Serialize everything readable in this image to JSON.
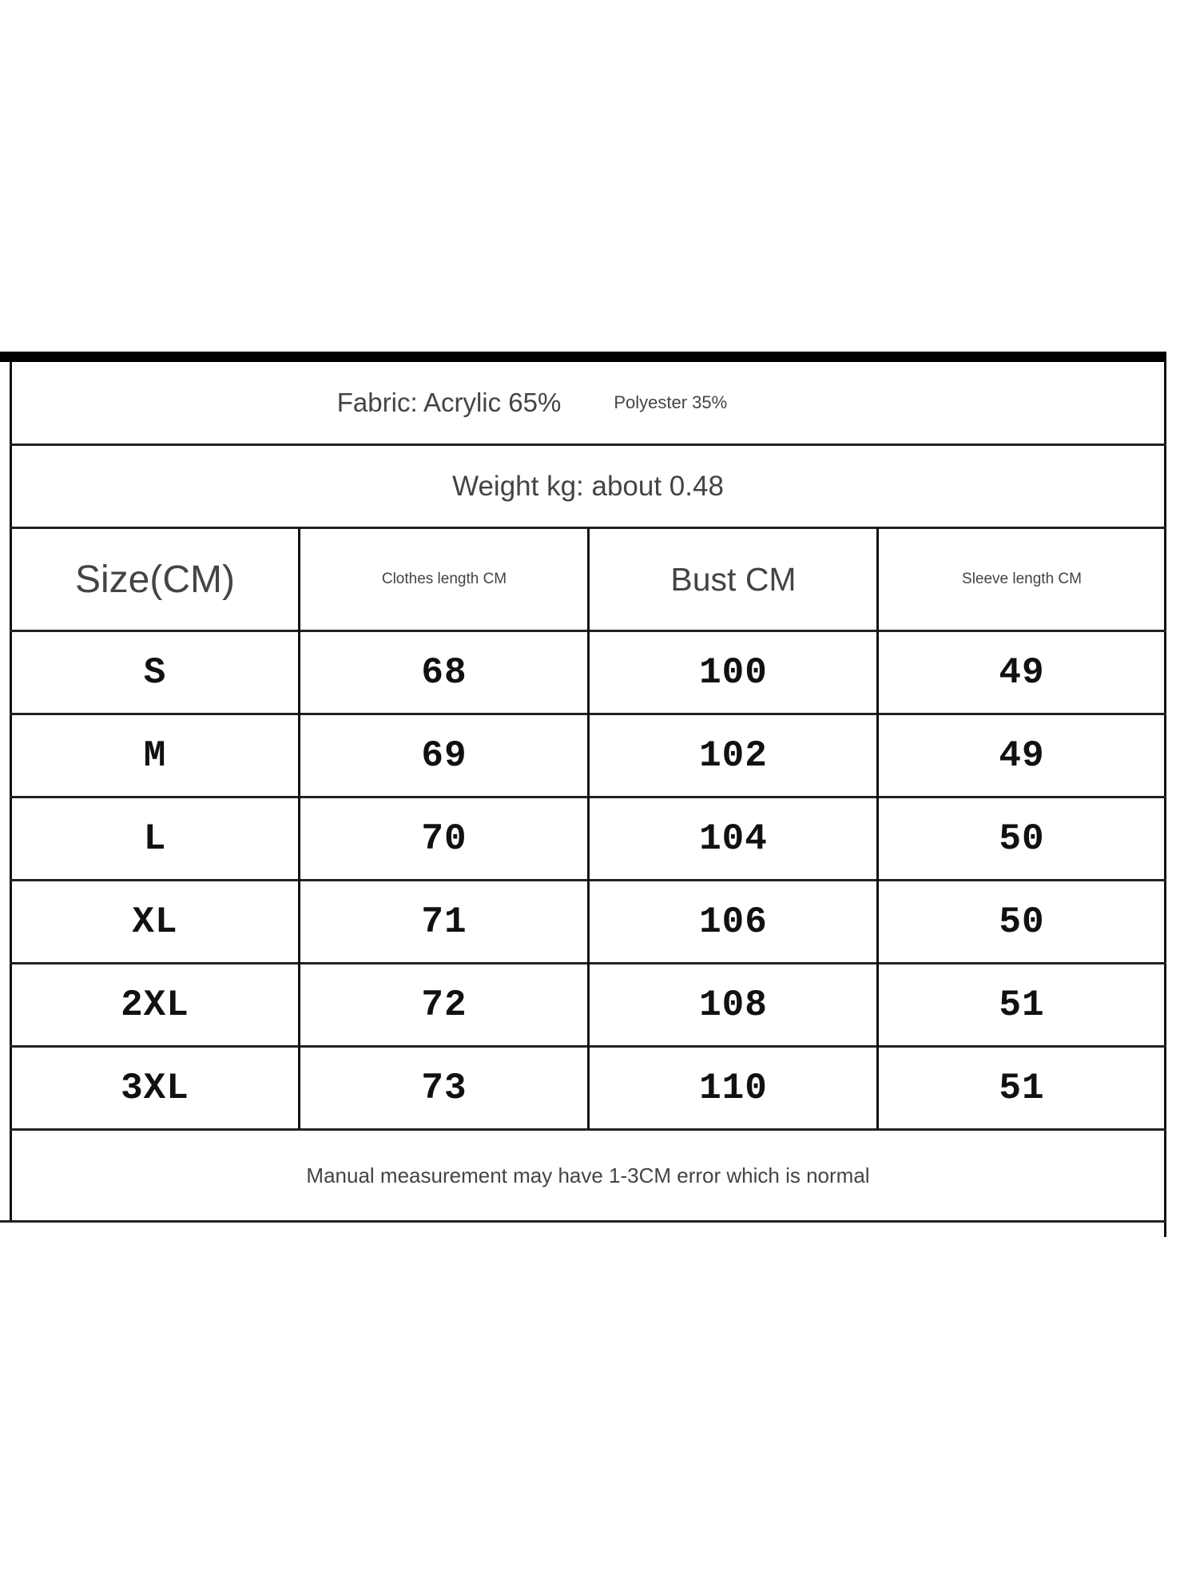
{
  "fabric": {
    "main": "Fabric: Acrylic 65%",
    "secondary": "Polyester 35%"
  },
  "weight": "Weight kg: about 0.48",
  "headers": [
    "Size(CM)",
    "Clothes length CM",
    "Bust CM",
    "Sleeve length CM"
  ],
  "rows": [
    [
      "S",
      "68",
      "100",
      "49"
    ],
    [
      "M",
      "69",
      "102",
      "49"
    ],
    [
      "L",
      "70",
      "104",
      "50"
    ],
    [
      "XL",
      "71",
      "106",
      "50"
    ],
    [
      "2XL",
      "72",
      "108",
      "51"
    ],
    [
      "3XL",
      "73",
      "110",
      "51"
    ]
  ],
  "note": "Manual measurement may have 1-3CM error which is normal"
}
